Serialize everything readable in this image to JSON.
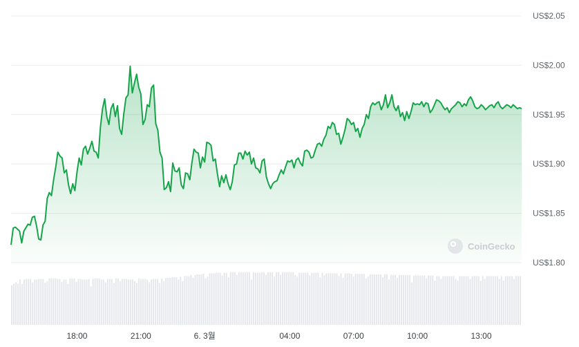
{
  "watermark": {
    "text": "CoinGecko",
    "icon": "coingecko-logo-icon"
  },
  "colors": {
    "line": "#16a34a",
    "fill_top": "#16a34a",
    "grid": "#ececec",
    "volume": "#e5e7eb"
  },
  "chart_data": {
    "type": "area",
    "title": "",
    "xlabel": "",
    "ylabel": "",
    "ylim": [
      1.8,
      2.05
    ],
    "y_ticks": [
      "US$1.80",
      "US$1.85",
      "US$1.90",
      "US$1.95",
      "US$2.00",
      "US$2.05"
    ],
    "y_tick_values": [
      1.8,
      1.85,
      1.9,
      1.95,
      2.0,
      2.05
    ],
    "x_range_hours": [
      14.9,
      38.9
    ],
    "x_ticks": [
      {
        "label": "18:00",
        "hour": 18
      },
      {
        "label": "21:00",
        "hour": 21
      },
      {
        "label": "6. 3월",
        "hour": 24
      },
      {
        "label": "04:00",
        "hour": 28
      },
      {
        "label": "07:00",
        "hour": 31
      },
      {
        "label": "10:00",
        "hour": 34
      },
      {
        "label": "13:00",
        "hour": 37
      }
    ],
    "grid": true,
    "series": [
      {
        "price": [
          [
            14.9,
            1.818
          ],
          [
            15.0,
            1.835
          ],
          [
            15.1,
            1.836
          ],
          [
            15.3,
            1.832
          ],
          [
            15.4,
            1.82
          ],
          [
            15.5,
            1.832
          ],
          [
            15.7,
            1.839
          ],
          [
            15.8,
            1.838
          ],
          [
            15.9,
            1.846
          ],
          [
            16.0,
            1.847
          ],
          [
            16.1,
            1.837
          ],
          [
            16.2,
            1.824
          ],
          [
            16.3,
            1.823
          ],
          [
            16.4,
            1.838
          ],
          [
            16.5,
            1.842
          ],
          [
            16.6,
            1.865
          ],
          [
            16.7,
            1.871
          ],
          [
            16.8,
            1.868
          ],
          [
            16.9,
            1.884
          ],
          [
            17.0,
            1.897
          ],
          [
            17.1,
            1.912
          ],
          [
            17.2,
            1.908
          ],
          [
            17.3,
            1.906
          ],
          [
            17.4,
            1.891
          ],
          [
            17.5,
            1.894
          ],
          [
            17.6,
            1.879
          ],
          [
            17.7,
            1.87
          ],
          [
            17.8,
            1.88
          ],
          [
            17.9,
            1.873
          ],
          [
            18.0,
            1.892
          ],
          [
            18.1,
            1.906
          ],
          [
            18.2,
            1.899
          ],
          [
            18.3,
            1.915
          ],
          [
            18.4,
            1.918
          ],
          [
            18.5,
            1.91
          ],
          [
            18.6,
            1.916
          ],
          [
            18.7,
            1.923
          ],
          [
            18.8,
            1.913
          ],
          [
            18.9,
            1.912
          ],
          [
            19.0,
            1.906
          ],
          [
            19.1,
            1.937
          ],
          [
            19.2,
            1.956
          ],
          [
            19.3,
            1.966
          ],
          [
            19.4,
            1.948
          ],
          [
            19.5,
            1.94
          ],
          [
            19.6,
            1.956
          ],
          [
            19.7,
            1.961
          ],
          [
            19.8,
            1.948
          ],
          [
            19.9,
            1.959
          ],
          [
            20.0,
            1.936
          ],
          [
            20.1,
            1.93
          ],
          [
            20.2,
            1.951
          ],
          [
            20.3,
            1.967
          ],
          [
            20.4,
            1.97
          ],
          [
            20.5,
            1.999
          ],
          [
            20.6,
            1.972
          ],
          [
            20.7,
            1.982
          ],
          [
            20.8,
            1.991
          ],
          [
            20.9,
            1.978
          ],
          [
            21.0,
            1.971
          ],
          [
            21.1,
            1.94
          ],
          [
            21.2,
            1.945
          ],
          [
            21.3,
            1.96
          ],
          [
            21.4,
            1.958
          ],
          [
            21.5,
            1.977
          ],
          [
            21.6,
            1.98
          ],
          [
            21.7,
            1.941
          ],
          [
            21.8,
            1.934
          ],
          [
            21.9,
            1.912
          ],
          [
            22.0,
            1.906
          ],
          [
            22.1,
            1.874
          ],
          [
            22.2,
            1.876
          ],
          [
            22.3,
            1.882
          ],
          [
            22.4,
            1.872
          ],
          [
            22.5,
            1.901
          ],
          [
            22.6,
            1.893
          ],
          [
            22.7,
            1.892
          ],
          [
            22.8,
            1.896
          ],
          [
            22.9,
            1.879
          ],
          [
            23.0,
            1.875
          ],
          [
            23.1,
            1.891
          ],
          [
            23.2,
            1.89
          ],
          [
            23.3,
            1.884
          ],
          [
            23.4,
            1.901
          ],
          [
            23.5,
            1.915
          ],
          [
            23.6,
            1.912
          ],
          [
            23.7,
            1.911
          ],
          [
            23.8,
            1.896
          ],
          [
            23.9,
            1.907
          ],
          [
            24.0,
            1.902
          ],
          [
            24.1,
            1.922
          ],
          [
            24.2,
            1.921
          ],
          [
            24.3,
            1.919
          ],
          [
            24.4,
            1.903
          ],
          [
            24.5,
            1.905
          ],
          [
            24.6,
            1.89
          ],
          [
            24.7,
            1.877
          ],
          [
            24.8,
            1.888
          ],
          [
            24.9,
            1.881
          ],
          [
            25.0,
            1.889
          ],
          [
            25.1,
            1.88
          ],
          [
            25.2,
            1.874
          ],
          [
            25.3,
            1.882
          ],
          [
            25.4,
            1.899
          ],
          [
            25.5,
            1.9
          ],
          [
            25.6,
            1.911
          ],
          [
            25.7,
            1.911
          ],
          [
            25.8,
            1.905
          ],
          [
            25.9,
            1.913
          ],
          [
            26.0,
            1.909
          ],
          [
            26.1,
            1.912
          ],
          [
            26.2,
            1.9
          ],
          [
            26.3,
            1.906
          ],
          [
            26.4,
            1.896
          ],
          [
            26.5,
            1.895
          ],
          [
            26.6,
            1.891
          ],
          [
            26.7,
            1.903
          ],
          [
            26.8,
            1.905
          ],
          [
            26.9,
            1.887
          ],
          [
            27.0,
            1.88
          ],
          [
            27.1,
            1.875
          ],
          [
            27.2,
            1.88
          ],
          [
            27.3,
            1.882
          ],
          [
            27.4,
            1.883
          ],
          [
            27.5,
            1.889
          ],
          [
            27.6,
            1.894
          ],
          [
            27.7,
            1.89
          ],
          [
            27.8,
            1.897
          ],
          [
            27.9,
            1.903
          ],
          [
            28.0,
            1.902
          ],
          [
            28.1,
            1.904
          ],
          [
            28.2,
            1.896
          ],
          [
            28.3,
            1.904
          ],
          [
            28.4,
            1.906
          ],
          [
            28.5,
            1.901
          ],
          [
            28.6,
            1.898
          ],
          [
            28.7,
            1.913
          ],
          [
            28.8,
            1.914
          ],
          [
            28.9,
            1.912
          ],
          [
            29.0,
            1.906
          ],
          [
            29.1,
            1.907
          ],
          [
            29.2,
            1.914
          ],
          [
            29.3,
            1.92
          ],
          [
            29.4,
            1.921
          ],
          [
            29.5,
            1.918
          ],
          [
            29.6,
            1.925
          ],
          [
            29.7,
            1.929
          ],
          [
            29.8,
            1.938
          ],
          [
            29.9,
            1.936
          ],
          [
            30.0,
            1.942
          ],
          [
            30.1,
            1.94
          ],
          [
            30.2,
            1.93
          ],
          [
            30.3,
            1.931
          ],
          [
            30.4,
            1.92
          ],
          [
            30.5,
            1.927
          ],
          [
            30.6,
            1.935
          ],
          [
            30.7,
            1.946
          ],
          [
            30.8,
            1.944
          ],
          [
            30.9,
            1.94
          ],
          [
            31.0,
            1.942
          ],
          [
            31.1,
            1.933
          ],
          [
            31.2,
            1.936
          ],
          [
            31.3,
            1.927
          ],
          [
            31.4,
            1.936
          ],
          [
            31.5,
            1.94
          ],
          [
            31.6,
            1.95
          ],
          [
            31.7,
            1.946
          ],
          [
            31.8,
            1.958
          ],
          [
            31.9,
            1.962
          ],
          [
            32.0,
            1.96
          ],
          [
            32.1,
            1.962
          ],
          [
            32.2,
            1.963
          ],
          [
            32.3,
            1.955
          ],
          [
            32.4,
            1.96
          ],
          [
            32.5,
            1.97
          ],
          [
            32.6,
            1.957
          ],
          [
            32.7,
            1.962
          ],
          [
            32.8,
            1.97
          ],
          [
            32.9,
            1.958
          ],
          [
            33.0,
            1.954
          ],
          [
            33.1,
            1.959
          ],
          [
            33.2,
            1.948
          ],
          [
            33.3,
            1.952
          ],
          [
            33.4,
            1.944
          ],
          [
            33.5,
            1.953
          ],
          [
            33.6,
            1.946
          ],
          [
            33.7,
            1.953
          ],
          [
            33.8,
            1.962
          ],
          [
            33.9,
            1.96
          ],
          [
            34.0,
            1.961
          ],
          [
            34.1,
            1.96
          ],
          [
            34.2,
            1.963
          ],
          [
            34.3,
            1.958
          ],
          [
            34.4,
            1.962
          ],
          [
            34.5,
            1.961
          ],
          [
            34.6,
            1.952
          ],
          [
            34.7,
            1.955
          ],
          [
            34.8,
            1.96
          ],
          [
            34.9,
            1.965
          ],
          [
            35.0,
            1.964
          ],
          [
            35.1,
            1.962
          ],
          [
            35.2,
            1.958
          ],
          [
            35.3,
            1.955
          ],
          [
            35.4,
            1.957
          ],
          [
            35.5,
            1.952
          ],
          [
            35.6,
            1.956
          ],
          [
            35.7,
            1.958
          ],
          [
            35.8,
            1.96
          ],
          [
            35.9,
            1.963
          ],
          [
            36.0,
            1.962
          ],
          [
            36.1,
            1.958
          ],
          [
            36.2,
            1.961
          ],
          [
            36.3,
            1.959
          ],
          [
            36.4,
            1.965
          ],
          [
            36.5,
            1.968
          ],
          [
            36.6,
            1.964
          ],
          [
            36.7,
            1.958
          ],
          [
            36.8,
            1.956
          ],
          [
            36.9,
            1.957
          ],
          [
            37.0,
            1.96
          ],
          [
            37.1,
            1.958
          ],
          [
            37.2,
            1.955
          ],
          [
            37.3,
            1.957
          ],
          [
            37.4,
            1.959
          ],
          [
            37.5,
            1.96
          ],
          [
            37.6,
            1.957
          ],
          [
            37.7,
            1.961
          ],
          [
            37.8,
            1.963
          ],
          [
            37.9,
            1.958
          ],
          [
            38.0,
            1.956
          ],
          [
            38.1,
            1.958
          ],
          [
            38.2,
            1.96
          ],
          [
            38.3,
            1.959
          ],
          [
            38.4,
            1.957
          ],
          [
            38.5,
            1.96
          ],
          [
            38.6,
            1.958
          ],
          [
            38.7,
            1.956
          ],
          [
            38.8,
            1.957
          ],
          [
            38.9,
            1.956
          ]
        ],
        "volume_relative": [
          0.78,
          0.8,
          0.81,
          0.8,
          0.81,
          0.82,
          0.82,
          0.81,
          0.8,
          0.82,
          0.81,
          0.8,
          0.81,
          0.82,
          0.8,
          0.81,
          0.82,
          0.81,
          0.8,
          0.82,
          0.81,
          0.8,
          0.81,
          0.82,
          0.83,
          0.84,
          0.85,
          0.86,
          0.88,
          0.89,
          0.9,
          0.91,
          0.92,
          0.92,
          0.93,
          0.93,
          0.93,
          0.93,
          0.92,
          0.93,
          0.93,
          0.93,
          0.93,
          0.93,
          0.93,
          0.92,
          0.92,
          0.92,
          0.92,
          0.91,
          0.91,
          0.91,
          0.91,
          0.9,
          0.9,
          0.9,
          0.89,
          0.89,
          0.89,
          0.88,
          0.88,
          0.88,
          0.88,
          0.87,
          0.87,
          0.87,
          0.86,
          0.86,
          0.86,
          0.86,
          0.86,
          0.86,
          0.86,
          0.86,
          0.86,
          0.86,
          0.86,
          0.86,
          0.86,
          0.86
        ]
      }
    ]
  }
}
